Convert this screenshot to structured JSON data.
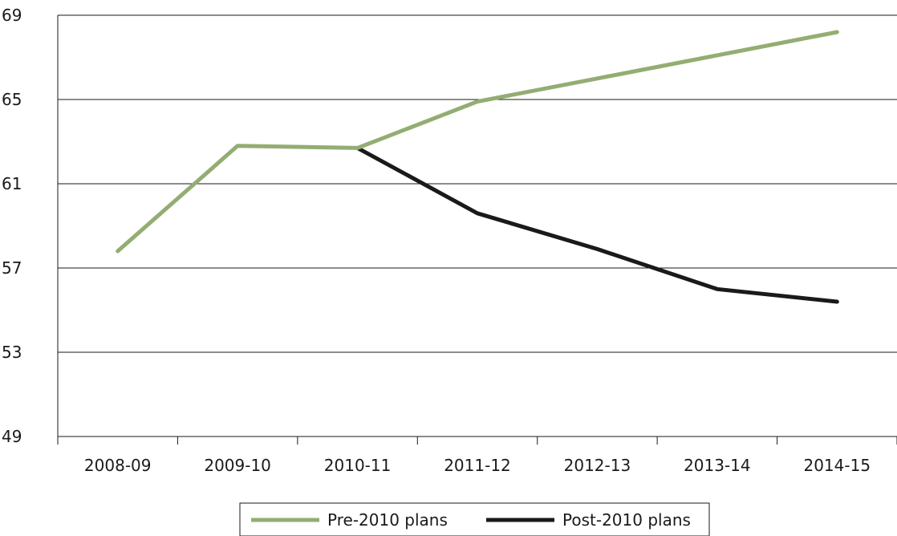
{
  "chart_data": {
    "type": "line",
    "title": "",
    "xlabel": "",
    "ylabel": "",
    "categories": [
      "2008-09",
      "2009-10",
      "2010-11",
      "2011-12",
      "2012-13",
      "2013-14",
      "2014-15"
    ],
    "ylim": [
      49,
      69
    ],
    "yticks": [
      49,
      53,
      57,
      61,
      65,
      69
    ],
    "ytick_labels": [
      "49",
      "53",
      "57",
      "61",
      "65",
      "69"
    ],
    "grid": true,
    "legend_position": "bottom-center",
    "series": [
      {
        "name": "Pre-2010 plans",
        "color": "#93ad72",
        "values": [
          57.8,
          62.8,
          62.7,
          64.9,
          66.0,
          67.1,
          68.2
        ]
      },
      {
        "name": "Post-2010 plans",
        "color": "#1a1a1a",
        "values": [
          null,
          null,
          62.7,
          59.6,
          57.9,
          56.0,
          55.4
        ]
      }
    ]
  }
}
